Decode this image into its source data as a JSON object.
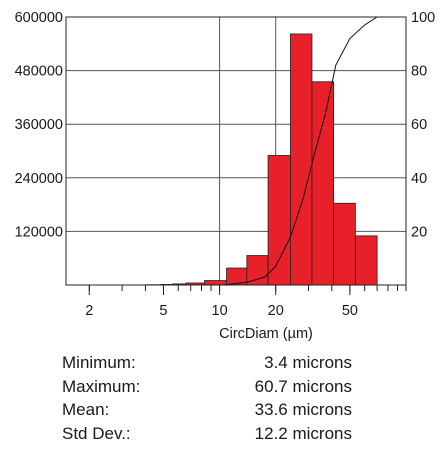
{
  "chart_data": {
    "type": "bar",
    "xlabel": "CircDiam (µm)",
    "x_scale": "log",
    "xlim": [
      1.5,
      100
    ],
    "x_ticks": [
      {
        "value": 2,
        "label": "2"
      },
      {
        "value": 5,
        "label": "5"
      },
      {
        "value": 10,
        "label": "10"
      },
      {
        "value": 20,
        "label": "20"
      },
      {
        "value": 50,
        "label": "50"
      }
    ],
    "ylim": [
      0,
      600000
    ],
    "y_ticks": [
      120000,
      240000,
      360000,
      480000,
      600000
    ],
    "y_tick_labels": [
      "120000",
      "240000",
      "360000",
      "480000",
      "600000"
    ],
    "y2lim": [
      0,
      100
    ],
    "y2_ticks": [
      20,
      40,
      60,
      80,
      100
    ],
    "y2_tick_labels": [
      "20",
      "40",
      "60",
      "80",
      "100"
    ],
    "grid": "major-only",
    "bar_color": "#e8202a",
    "bars": [
      {
        "x0": 4.0,
        "x1": 4.8,
        "value": 600
      },
      {
        "x0": 4.8,
        "x1": 5.6,
        "value": 1200
      },
      {
        "x0": 5.6,
        "x1": 6.6,
        "value": 2500
      },
      {
        "x0": 6.6,
        "x1": 8.3,
        "value": 4500
      },
      {
        "x0": 8.3,
        "x1": 10.9,
        "value": 10000
      },
      {
        "x0": 10.9,
        "x1": 14.0,
        "value": 38000
      },
      {
        "x0": 14.0,
        "x1": 18.2,
        "value": 66000
      },
      {
        "x0": 18.2,
        "x1": 24.0,
        "value": 290000
      },
      {
        "x0": 24.0,
        "x1": 31.3,
        "value": 562000
      },
      {
        "x0": 31.3,
        "x1": 40.9,
        "value": 455000
      },
      {
        "x0": 40.9,
        "x1": 53.5,
        "value": 183000
      },
      {
        "x0": 53.5,
        "x1": 70.0,
        "value": 110000
      }
    ],
    "cumulative_series": {
      "x": [
        10.5,
        14,
        17.5,
        20,
        24,
        28,
        32,
        37,
        42,
        50,
        60,
        70,
        73
      ],
      "y": [
        0,
        1,
        3,
        7,
        18,
        32,
        48,
        64,
        82,
        92,
        97,
        100,
        100
      ]
    }
  },
  "stats": [
    {
      "label": "Minimum:",
      "value": "3.4 microns"
    },
    {
      "label": "Maximum:",
      "value": "60.7 microns"
    },
    {
      "label": "Mean:",
      "value": "33.6 microns"
    },
    {
      "label": "Std Dev.:",
      "value": "12.2 microns"
    }
  ]
}
